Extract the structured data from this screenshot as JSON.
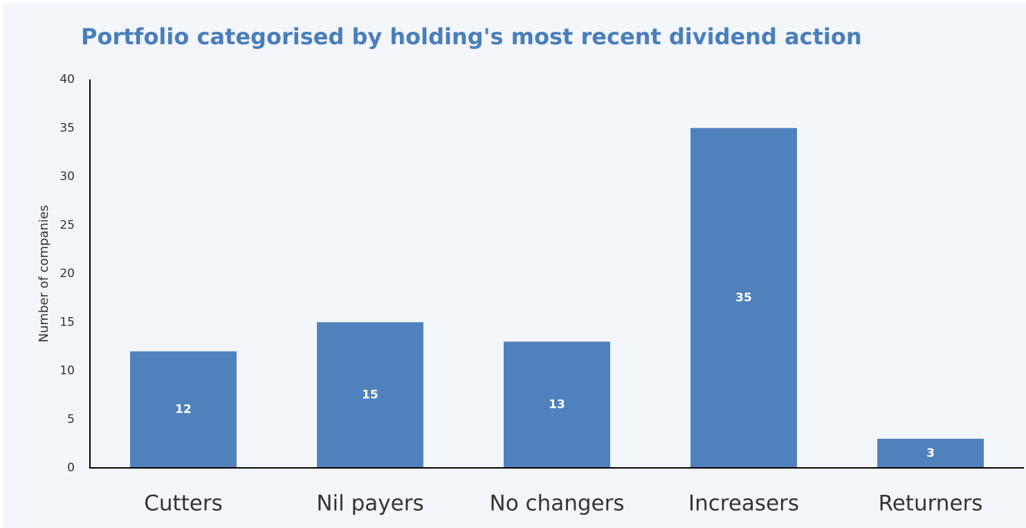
{
  "chart_data": {
    "type": "bar",
    "title": "Portfolio categorised by holding's most recent dividend action",
    "y_label": "Number of companies",
    "categories": [
      "Cutters",
      "Nil payers",
      "No changers",
      "Increasers",
      "Returners"
    ],
    "values": [
      12,
      15,
      13,
      35,
      3
    ],
    "color": "#4f81bd",
    "ylim": [
      0,
      40
    ],
    "yticks": [
      0,
      5,
      10,
      15,
      20,
      25,
      30,
      35,
      40
    ],
    "grid": false,
    "data_labels": true
  }
}
